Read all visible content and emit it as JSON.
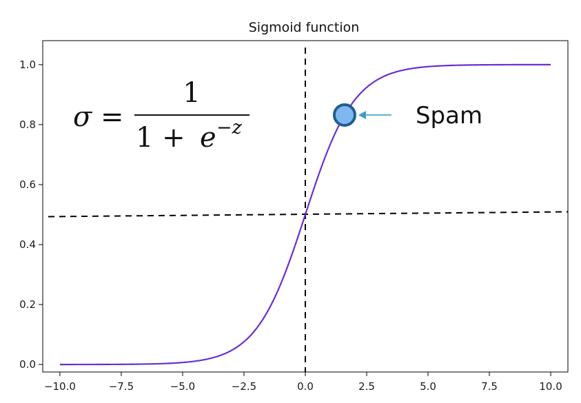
{
  "chart_data": {
    "type": "line",
    "title": "Sigmoid function",
    "xlabel": "",
    "ylabel": "",
    "xlim": [
      -10.7,
      10.7
    ],
    "ylim": [
      -0.025,
      1.08
    ],
    "x_ticks": [
      -10.0,
      -7.5,
      -5.0,
      -2.5,
      0.0,
      2.5,
      5.0,
      7.5,
      10.0
    ],
    "x_tick_labels": [
      "−10.0",
      "−7.5",
      "−5.0",
      "−2.5",
      "0.0",
      "2.5",
      "5.0",
      "7.5",
      "10.0"
    ],
    "y_ticks": [
      0.0,
      0.2,
      0.4,
      0.6,
      0.8,
      1.0
    ],
    "y_tick_labels": [
      "0.0",
      "0.2",
      "0.4",
      "0.6",
      "0.8",
      "1.0"
    ],
    "grid": false,
    "series": [
      {
        "color": "#6a2ecf",
        "x": [
          -10,
          -9,
          -8,
          -7,
          -6,
          -5,
          -4,
          -3,
          -2.5,
          -2,
          -1.5,
          -1,
          -0.5,
          0,
          0.5,
          1,
          1.5,
          2,
          2.5,
          3,
          4,
          5,
          6,
          7,
          8,
          9,
          10
        ],
        "y": [
          5e-05,
          0.00012,
          0.00034,
          0.00091,
          0.00247,
          0.00669,
          0.01799,
          0.04743,
          0.07586,
          0.1192,
          0.18243,
          0.26894,
          0.37754,
          0.5,
          0.62246,
          0.73106,
          0.81757,
          0.8808,
          0.92414,
          0.95257,
          0.98201,
          0.99331,
          0.99753,
          0.99909,
          0.99966,
          0.99988,
          0.99995
        ]
      }
    ],
    "reference_lines": [
      {
        "orientation": "vertical",
        "x": 0.0,
        "style": "dashed",
        "color": "#000000"
      },
      {
        "orientation": "horizontal",
        "y": 0.5,
        "style": "dashed",
        "color": "#000000"
      }
    ],
    "annotations": {
      "formula": {
        "sigma": "σ",
        "equals": "=",
        "numerator": "1",
        "denominator_base": "1 +",
        "denominator_e": "e",
        "denominator_exp": "−z"
      },
      "marker": {
        "label": "Spam",
        "x": 1.6,
        "y": 0.832,
        "fill": "#7fb8f0",
        "stroke": "#1f5f8f",
        "arrow_color": "#3a9fc0"
      }
    }
  }
}
